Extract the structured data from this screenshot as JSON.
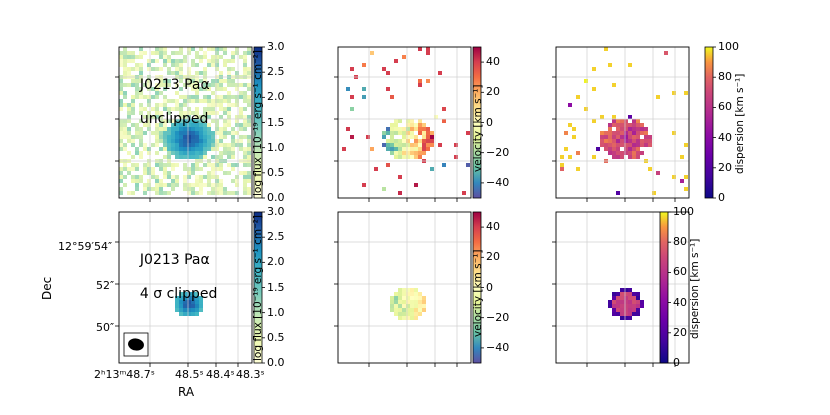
{
  "figure": {
    "rows": [
      {
        "label_source": "J0213 Paα",
        "label_mode": "unclipped",
        "panels": [
          {
            "kind": "flux",
            "colorbar": {
              "label": "log flux [10⁻¹⁹ erg s⁻¹ cm⁻²]",
              "ticks": [
                "0.0",
                "0.5",
                "1.0",
                "1.5",
                "2.0",
                "2.5",
                "3.0"
              ],
              "range": [
                0.0,
                3.0
              ],
              "colormap": "YlGnBu"
            }
          },
          {
            "kind": "velocity",
            "colorbar": {
              "label": "velocity [km s⁻¹]",
              "ticks": [
                "−40",
                "−20",
                "0",
                "20",
                "40"
              ],
              "range": [
                -50,
                50
              ],
              "colormap": "Spectral_r"
            }
          },
          {
            "kind": "dispersion",
            "colorbar": {
              "label": "dispersion [km s⁻¹]",
              "ticks": [
                "0",
                "20",
                "40",
                "60",
                "80",
                "100"
              ],
              "range": [
                0,
                100
              ],
              "colormap": "plasma"
            }
          }
        ]
      },
      {
        "label_source": "J0213 Paα",
        "label_mode": "4 σ clipped",
        "panels": [
          {
            "kind": "flux",
            "colorbar": {
              "label": "log flux [10⁻¹⁹ erg s⁻¹ cm⁻²]",
              "ticks": [
                "0.0",
                "0.5",
                "1.0",
                "1.5",
                "2.0",
                "2.5",
                "3.0"
              ],
              "range": [
                0.0,
                3.0
              ],
              "colormap": "YlGnBu"
            }
          },
          {
            "kind": "velocity",
            "colorbar": {
              "label": "velocity [km s⁻¹]",
              "ticks": [
                "−40",
                "−20",
                "0",
                "20",
                "40"
              ],
              "range": [
                -50,
                50
              ],
              "colormap": "Spectral_r"
            }
          },
          {
            "kind": "dispersion",
            "colorbar": {
              "label": "dispersion [km s⁻¹]",
              "ticks": [
                "0",
                "20",
                "40",
                "60",
                "80",
                "100"
              ],
              "range": [
                0,
                100
              ],
              "colormap": "plasma"
            }
          }
        ]
      }
    ],
    "axes": {
      "xlabel": "RA",
      "ylabel": "Dec",
      "ra_ticks": [
        "2ʰ13ᵐ48.7ˢ",
        "48.5ˢ",
        "48.4ˢ",
        "48.3ˢ"
      ],
      "dec_ticks": [
        "12°59′54″",
        "52″",
        "50″"
      ]
    }
  }
}
